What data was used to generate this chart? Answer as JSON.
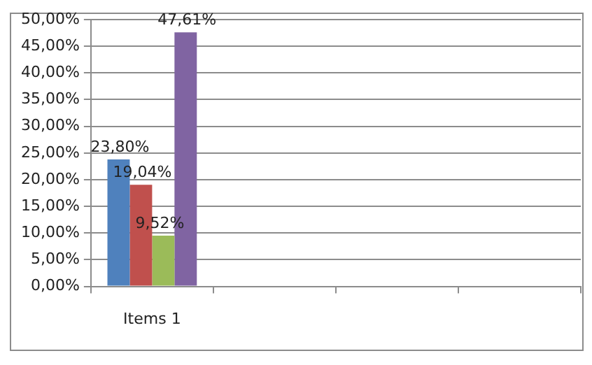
{
  "chart_data": {
    "type": "bar",
    "categories": [
      "Items 1",
      null,
      null,
      null
    ],
    "series": [
      {
        "color": "#4f81bd",
        "values": [
          23.8,
          null,
          null,
          null
        ],
        "value_labels": [
          "23,80%",
          null,
          null,
          null
        ]
      },
      {
        "color": "#c0504d",
        "values": [
          19.04,
          null,
          null,
          null
        ],
        "value_labels": [
          "19,04%",
          null,
          null,
          null
        ]
      },
      {
        "color": "#9bbb59",
        "values": [
          9.52,
          null,
          null,
          null
        ],
        "value_labels": [
          "9,52%",
          null,
          null,
          null
        ]
      },
      {
        "color": "#8064a2",
        "values": [
          47.61,
          null,
          null,
          null
        ],
        "value_labels": [
          "47,61%",
          null,
          null,
          null
        ]
      }
    ],
    "ylim": [
      0,
      50
    ],
    "yticks": [
      {
        "value": 0,
        "label": "0,00%"
      },
      {
        "value": 5,
        "label": "5,00%"
      },
      {
        "value": 10,
        "label": "10,00%"
      },
      {
        "value": 15,
        "label": "15,00%"
      },
      {
        "value": 20,
        "label": "20,00%"
      },
      {
        "value": 25,
        "label": "25,00%"
      },
      {
        "value": 30,
        "label": "30,00%"
      },
      {
        "value": 35,
        "label": "35,00%"
      },
      {
        "value": 40,
        "label": "40,00%"
      },
      {
        "value": 45,
        "label": "45,00%"
      },
      {
        "value": 50,
        "label": "50,00%"
      }
    ],
    "grid": "y",
    "legend": false
  }
}
